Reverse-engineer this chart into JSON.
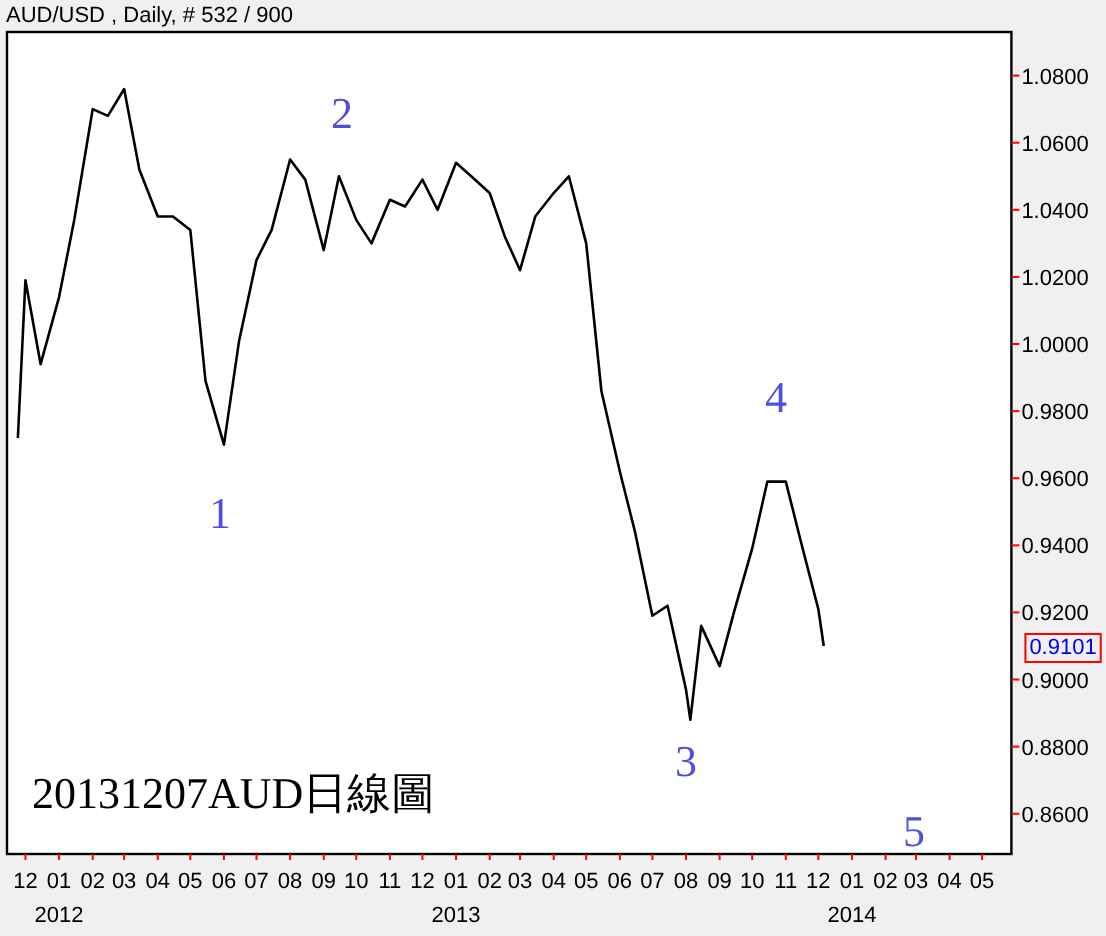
{
  "chart_data": {
    "type": "line",
    "title": "AUD/USD , Daily, # 532 / 900",
    "x": [
      "2011-11-24",
      "2011-12-01",
      "2011-12-15",
      "2012-01-01",
      "2012-01-15",
      "2012-02-01",
      "2012-02-15",
      "2012-03-01",
      "2012-03-15",
      "2012-04-01",
      "2012-04-15",
      "2012-05-01",
      "2012-05-15",
      "2012-06-01",
      "2012-06-15",
      "2012-07-01",
      "2012-07-15",
      "2012-08-01",
      "2012-08-15",
      "2012-09-01",
      "2012-09-15",
      "2012-10-01",
      "2012-10-15",
      "2012-11-01",
      "2012-11-15",
      "2012-12-01",
      "2012-12-15",
      "2013-01-01",
      "2013-01-15",
      "2013-02-01",
      "2013-02-15",
      "2013-03-01",
      "2013-03-15",
      "2013-04-01",
      "2013-04-15",
      "2013-05-01",
      "2013-05-15",
      "2013-06-01",
      "2013-06-15",
      "2013-07-01",
      "2013-07-15",
      "2013-08-01",
      "2013-08-05",
      "2013-08-15",
      "2013-09-01",
      "2013-09-15",
      "2013-10-01",
      "2013-10-15",
      "2013-11-01",
      "2013-11-15",
      "2013-12-01",
      "2013-12-06"
    ],
    "series": [
      {
        "color": "#000000",
        "values": [
          0.972,
          1.019,
          0.994,
          1.014,
          1.037,
          1.07,
          1.068,
          1.076,
          1.052,
          1.038,
          1.038,
          1.034,
          0.989,
          0.97,
          1.001,
          1.025,
          1.034,
          1.055,
          1.049,
          1.028,
          1.05,
          1.037,
          1.03,
          1.043,
          1.041,
          1.049,
          1.04,
          1.054,
          1.05,
          1.045,
          1.032,
          1.022,
          1.038,
          1.045,
          1.05,
          1.03,
          0.986,
          0.962,
          0.944,
          0.919,
          0.922,
          0.897,
          0.888,
          0.916,
          0.904,
          0.921,
          0.939,
          0.959,
          0.959,
          0.941,
          0.921,
          0.91
        ]
      }
    ],
    "xlim": [
      "2011-11-14",
      "2014-05-28"
    ],
    "xticks": [
      {
        "value": "2011-12-01",
        "label": "12"
      },
      {
        "value": "2012-01-01",
        "label": "01\n2012"
      },
      {
        "value": "2012-02-01",
        "label": "02"
      },
      {
        "value": "2012-03-01",
        "label": "03"
      },
      {
        "value": "2012-04-01",
        "label": "04"
      },
      {
        "value": "2012-05-01",
        "label": "05"
      },
      {
        "value": "2012-06-01",
        "label": "06"
      },
      {
        "value": "2012-07-01",
        "label": "07"
      },
      {
        "value": "2012-08-01",
        "label": "08"
      },
      {
        "value": "2012-09-01",
        "label": "09"
      },
      {
        "value": "2012-10-01",
        "label": "10"
      },
      {
        "value": "2012-11-01",
        "label": "11"
      },
      {
        "value": "2012-12-01",
        "label": "12"
      },
      {
        "value": "2013-01-01",
        "label": "01\n2013"
      },
      {
        "value": "2013-02-01",
        "label": "02"
      },
      {
        "value": "2013-03-01",
        "label": "03"
      },
      {
        "value": "2013-04-01",
        "label": "04"
      },
      {
        "value": "2013-05-01",
        "label": "05"
      },
      {
        "value": "2013-06-01",
        "label": "06"
      },
      {
        "value": "2013-07-01",
        "label": "07"
      },
      {
        "value": "2013-08-01",
        "label": "08"
      },
      {
        "value": "2013-09-01",
        "label": "09"
      },
      {
        "value": "2013-10-01",
        "label": "10"
      },
      {
        "value": "2013-11-01",
        "label": "11"
      },
      {
        "value": "2013-12-01",
        "label": "12"
      },
      {
        "value": "2014-01-01",
        "label": "01\n2014"
      },
      {
        "value": "2014-02-01",
        "label": "02"
      },
      {
        "value": "2014-03-01",
        "label": "03"
      },
      {
        "value": "2014-04-01",
        "label": "04"
      },
      {
        "value": "2014-05-01",
        "label": "05"
      }
    ],
    "ylim": [
      0.848,
      1.093
    ],
    "yticks": [
      {
        "value": 0.86,
        "label": "0.8600"
      },
      {
        "value": 0.88,
        "label": "0.8800"
      },
      {
        "value": 0.9,
        "label": "0.9000"
      },
      {
        "value": 0.92,
        "label": "0.9200"
      },
      {
        "value": 0.94,
        "label": "0.9400"
      },
      {
        "value": 0.96,
        "label": "0.9600"
      },
      {
        "value": 0.98,
        "label": "0.9800"
      },
      {
        "value": 1.0,
        "label": "1.0000"
      },
      {
        "value": 1.02,
        "label": "1.0200"
      },
      {
        "value": 1.04,
        "label": "1.0400"
      },
      {
        "value": 1.06,
        "label": "1.0600"
      },
      {
        "value": 1.08,
        "label": "1.0800"
      }
    ],
    "annotations": [
      "1",
      "2",
      "3",
      "4",
      "5",
      "0.9101",
      "20131207AUD日線圖"
    ],
    "grid": false
  }
}
